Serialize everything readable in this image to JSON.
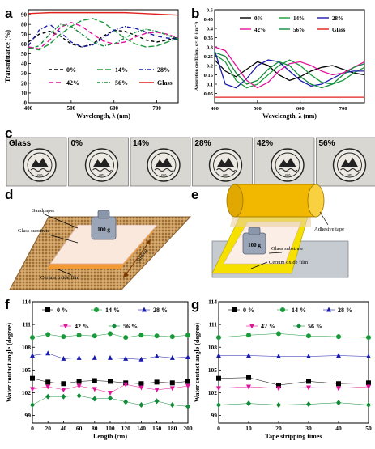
{
  "panels": {
    "a": "a",
    "b": "b",
    "c": "c",
    "d": "d",
    "e": "e",
    "f": "f",
    "g": "g"
  },
  "colors": {
    "s0": "#000000",
    "s14": "#1a9a3a",
    "s28": "#1c1caa",
    "s42": "#e0149a",
    "s56": "#138a3a",
    "glass": "#e0201c",
    "wood": "#c79a5a",
    "cylinder": "#f2b800",
    "film": "#f5e000",
    "orange": "#f39a35"
  },
  "chart_data": [
    {
      "id": "a",
      "type": "line",
      "xlabel": "Wavelength, λ (nm)",
      "ylabel": "Transmittance (%)",
      "xlim": [
        400,
        750
      ],
      "ylim": [
        0,
        95
      ],
      "xticks": [
        400,
        500,
        600,
        700
      ],
      "yticks": [
        0,
        10,
        20,
        30,
        40,
        50,
        60,
        70,
        80,
        90
      ],
      "legend": {
        "placement": "bottom-center",
        "items": [
          "0%",
          "14%",
          "28%",
          "42%",
          "56%",
          "Glass"
        ]
      },
      "x": [
        400,
        425,
        450,
        475,
        500,
        525,
        550,
        575,
        600,
        625,
        650,
        675,
        700,
        725,
        750
      ],
      "series": [
        {
          "name": "0%",
          "values": [
            62,
            70,
            73,
            68,
            60,
            57,
            60,
            68,
            74,
            73,
            69,
            64,
            62,
            64,
            67
          ]
        },
        {
          "name": "14%",
          "values": [
            56,
            54,
            60,
            70,
            78,
            84,
            86,
            82,
            74,
            66,
            60,
            57,
            58,
            62,
            66
          ]
        },
        {
          "name": "28%",
          "values": [
            58,
            74,
            80,
            72,
            62,
            57,
            59,
            66,
            74,
            78,
            76,
            72,
            68,
            66,
            65
          ]
        },
        {
          "name": "42%",
          "values": [
            57,
            55,
            64,
            77,
            82,
            78,
            70,
            63,
            60,
            62,
            67,
            71,
            72,
            70,
            66
          ]
        },
        {
          "name": "56%",
          "values": [
            55,
            58,
            70,
            80,
            78,
            70,
            62,
            58,
            60,
            66,
            72,
            75,
            73,
            69,
            65
          ]
        },
        {
          "name": "Glass",
          "values": [
            91,
            91.5,
            92,
            92,
            92,
            92,
            92,
            92,
            92,
            92,
            91.5,
            91,
            90.5,
            90,
            89.5
          ]
        }
      ]
    },
    {
      "id": "b",
      "type": "line",
      "xlabel": "Wavelength, λ (nm)",
      "ylabel": "Absorption coefficient, α×10⁵ (cm⁻¹)",
      "xlim": [
        400,
        750
      ],
      "ylim": [
        0.0,
        0.5
      ],
      "xticks": [
        400,
        500,
        600,
        700
      ],
      "yticks": [
        0.05,
        0.1,
        0.15,
        0.2,
        0.25,
        0.3,
        0.35,
        0.4,
        0.45,
        0.5
      ],
      "legend": {
        "placement": "top-right",
        "items": [
          "0%",
          "14%",
          "28%",
          "42%",
          "56%",
          "Glass"
        ]
      },
      "x": [
        400,
        425,
        450,
        475,
        500,
        525,
        550,
        575,
        600,
        625,
        650,
        675,
        700,
        725,
        750
      ],
      "series": [
        {
          "name": "0%",
          "values": [
            0.23,
            0.17,
            0.14,
            0.18,
            0.22,
            0.2,
            0.15,
            0.12,
            0.14,
            0.17,
            0.19,
            0.2,
            0.18,
            0.16,
            0.15
          ]
        },
        {
          "name": "14%",
          "values": [
            0.26,
            0.22,
            0.12,
            0.08,
            0.1,
            0.15,
            0.2,
            0.23,
            0.2,
            0.15,
            0.11,
            0.1,
            0.12,
            0.16,
            0.19
          ]
        },
        {
          "name": "28%",
          "values": [
            0.28,
            0.1,
            0.08,
            0.13,
            0.2,
            0.23,
            0.22,
            0.17,
            0.12,
            0.09,
            0.1,
            0.13,
            0.16,
            0.17,
            0.17
          ]
        },
        {
          "name": "42%",
          "values": [
            0.3,
            0.28,
            0.2,
            0.12,
            0.08,
            0.11,
            0.17,
            0.21,
            0.22,
            0.2,
            0.17,
            0.15,
            0.16,
            0.19,
            0.22
          ]
        },
        {
          "name": "56%",
          "values": [
            0.27,
            0.25,
            0.16,
            0.1,
            0.12,
            0.18,
            0.22,
            0.2,
            0.14,
            0.1,
            0.08,
            0.1,
            0.15,
            0.19,
            0.21
          ]
        },
        {
          "name": "Glass",
          "values": [
            0.03,
            0.03,
            0.03,
            0.03,
            0.03,
            0.03,
            0.03,
            0.03,
            0.03,
            0.03,
            0.03,
            0.03,
            0.03,
            0.03,
            0.03
          ]
        }
      ]
    },
    {
      "id": "f",
      "type": "line",
      "xlabel": "Length (cm)",
      "ylabel": "Water contact angle (degree)",
      "xlim": [
        0,
        200
      ],
      "ylim": [
        98,
        114
      ],
      "xticks": [
        0,
        20,
        40,
        60,
        80,
        100,
        120,
        140,
        160,
        180,
        200
      ],
      "yticks": [
        99,
        102,
        105,
        108,
        111,
        114
      ],
      "legend": {
        "placement": "top",
        "items": [
          "0 %",
          "14 %",
          "28 %",
          "42 %",
          "56 %"
        ]
      },
      "x": [
        0,
        20,
        40,
        60,
        80,
        100,
        120,
        140,
        160,
        180,
        200
      ],
      "series": [
        {
          "name": "0 %",
          "values": [
            103.9,
            103.4,
            103.2,
            103.5,
            103.6,
            103.5,
            103.3,
            103.2,
            103.4,
            103.3,
            103.5
          ]
        },
        {
          "name": "14 %",
          "values": [
            109.3,
            109.7,
            109.4,
            109.6,
            109.5,
            109.8,
            109.3,
            109.6,
            109.5,
            109.4,
            109.6
          ]
        },
        {
          "name": "28 %",
          "values": [
            106.9,
            107.2,
            106.5,
            106.6,
            106.6,
            106.6,
            106.5,
            106.4,
            106.8,
            106.6,
            106.7
          ]
        },
        {
          "name": "42 %",
          "values": [
            102.5,
            102.8,
            102.4,
            102.9,
            102.5,
            102.0,
            103.1,
            102.7,
            102.4,
            102.6,
            102.9
          ]
        },
        {
          "name": "56 %",
          "values": [
            100.4,
            101.5,
            101.5,
            101.6,
            101.2,
            101.3,
            100.8,
            100.4,
            100.9,
            100.4,
            100.2
          ]
        }
      ]
    },
    {
      "id": "g",
      "type": "line",
      "xlabel": "Tape stripping times",
      "ylabel": "Water contact angle (degree)",
      "xlim": [
        0,
        50
      ],
      "ylim": [
        98,
        114
      ],
      "xticks": [
        0,
        10,
        20,
        30,
        40,
        50
      ],
      "yticks": [
        99,
        102,
        105,
        108,
        111,
        114
      ],
      "legend": {
        "placement": "top",
        "items": [
          "0 %",
          "14 %",
          "28 %",
          "42 %",
          "56 %"
        ]
      },
      "x": [
        0,
        10,
        20,
        30,
        40,
        50
      ],
      "series": [
        {
          "name": "0 %",
          "values": [
            103.9,
            104.0,
            103.0,
            103.5,
            103.2,
            103.3
          ]
        },
        {
          "name": "14 %",
          "values": [
            109.3,
            109.6,
            109.8,
            109.5,
            109.4,
            109.3
          ]
        },
        {
          "name": "28 %",
          "values": [
            106.9,
            106.9,
            106.8,
            106.8,
            106.9,
            106.8
          ]
        },
        {
          "name": "42 %",
          "values": [
            102.6,
            102.8,
            102.6,
            102.7,
            102.6,
            102.8
          ]
        },
        {
          "name": "56 %",
          "values": [
            100.4,
            100.6,
            100.4,
            100.5,
            100.7,
            100.4
          ]
        }
      ]
    }
  ],
  "photos": {
    "labels": [
      "Glass",
      "0%",
      "14%",
      "28%",
      "42%",
      "56%"
    ],
    "seal_text": "1985"
  },
  "schematic_d": {
    "sandpaper": "Sandpaper",
    "substrate": "Glass substrate",
    "film": "Cerium oxide film",
    "weight": "100 g",
    "sliding": "Sliding"
  },
  "schematic_e": {
    "tape": "Adhesive tape",
    "substrate": "Glass substrate",
    "film": "Cerium oxide film",
    "weight": "100 g"
  }
}
